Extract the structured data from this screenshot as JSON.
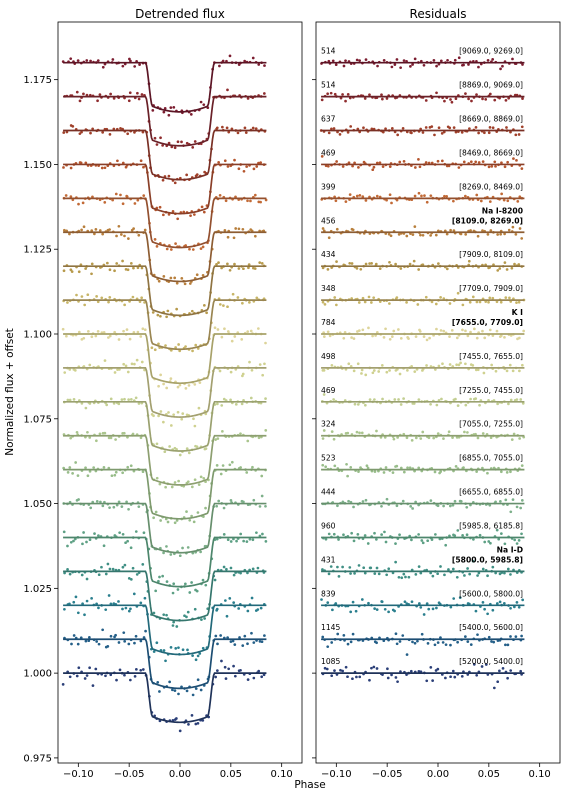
{
  "chart_data": [
    {
      "type": "line",
      "title": "Detrended flux",
      "ylabel": "Normalized flux + offset",
      "xlim": [
        -0.12,
        0.12
      ],
      "ylim": [
        0.9735,
        1.192
      ],
      "xticks": [
        -0.1,
        -0.05,
        0.0,
        0.05,
        0.1
      ],
      "xtick_labels": [
        "−0.10",
        "−0.05",
        "0.00",
        "0.05",
        "0.10"
      ],
      "yticks": [
        0.975,
        1.0,
        1.025,
        1.05,
        1.075,
        1.1,
        1.125,
        1.15,
        1.175
      ],
      "ytick_labels": [
        "0.975",
        "1.000",
        "1.025",
        "1.050",
        "1.075",
        "1.100",
        "1.125",
        "1.150",
        "1.175"
      ],
      "x_range": [
        -0.115,
        0.085
      ],
      "transit": {
        "t14_half": 0.034,
        "t23_half": 0.027,
        "depth": 0.0145
      },
      "series_offsets": [
        1.0,
        1.01,
        1.02,
        1.03,
        1.04,
        1.05,
        1.06,
        1.07,
        1.08,
        1.09,
        1.1,
        1.11,
        1.12,
        1.13,
        1.14,
        1.15,
        1.16,
        1.17,
        1.18
      ],
      "series_colors": [
        "#2b3f78",
        "#245f88",
        "#2a7f8e",
        "#3f8f84",
        "#5da084",
        "#7db08a",
        "#98bd8a",
        "#aac58d",
        "#c3cf92",
        "#cfd190",
        "#ddd49a",
        "#c7b567",
        "#b79a4c",
        "#b87f3c",
        "#c26a36",
        "#b5552d",
        "#a0402a",
        "#8f2c2e",
        "#7c1d30"
      ],
      "line_colors": [
        "#1f3259",
        "#1d4e73",
        "#22697a",
        "#35766d",
        "#4d866c",
        "#678f6d",
        "#7e9a6e",
        "#8d9f70",
        "#9aa16f",
        "#a3a070",
        "#a8a26a",
        "#9a8652",
        "#8f7442",
        "#8d5d33",
        "#93502f",
        "#8a3f28",
        "#7a3025",
        "#6a2128",
        "#5c1525"
      ]
    },
    {
      "type": "scatter",
      "title": "Residuals",
      "xlim": [
        -0.12,
        0.12
      ],
      "xticks": [
        -0.1,
        -0.05,
        0.0,
        0.05,
        0.1
      ],
      "xtick_labels": [
        "−0.10",
        "−0.05",
        "0.00",
        "0.05",
        "0.10"
      ],
      "x_range": [
        -0.115,
        0.085
      ],
      "counts": [
        "1085",
        "1145",
        "839",
        "431",
        "960",
        "444",
        "523",
        "324",
        "469",
        "498",
        "784",
        "348",
        "434",
        "456",
        "399",
        "469",
        "637",
        "514",
        "514"
      ],
      "ranges": [
        "[5200.0, 5400.0]",
        "[5400.0, 5600.0]",
        "[5600.0, 5800.0]",
        "[5800.0, 5985.8]",
        "[5985.8, 6185.8]",
        "[6655.0, 6855.0]",
        "[6855.0, 7055.0]",
        "[7055.0, 7255.0]",
        "[7255.0, 7455.0]",
        "[7455.0, 7655.0]",
        "[7655.0, 7709.0]",
        "[7709.0, 7909.0]",
        "[7909.0, 8109.0]",
        "[8109.0, 8269.0]",
        "[8269.0, 8469.0]",
        "[8469.0, 8669.0]",
        "[8669.0, 8869.0]",
        "[8869.0, 9069.0]",
        "[9069.0, 9269.0]"
      ],
      "species": [
        "",
        "",
        "",
        "Na I-D",
        "",
        "",
        "",
        "",
        "",
        "",
        "K I",
        "",
        "",
        "Na I-8200",
        "",
        "",
        "",
        "",
        ""
      ]
    }
  ],
  "xlabel": "Phase"
}
